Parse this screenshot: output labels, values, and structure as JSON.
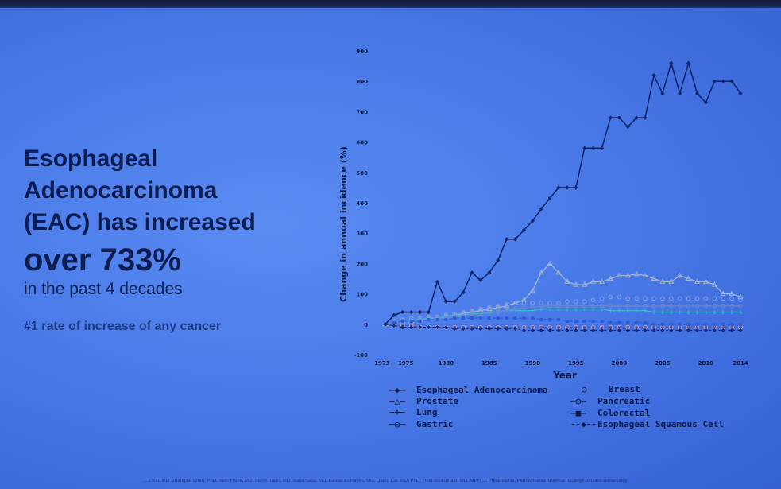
{
  "slide": {
    "headline": [
      "Esophageal",
      "Adenocarcinoma",
      "(EAC) has increased"
    ],
    "big_stat": "over 733%",
    "subtitle": "in the past 4 decades",
    "rank_note": "#1 rate of increase of any cancer",
    "footer": "... Zhou, MD; Zhangxia Chen, PhD; Seth Frenk, MD; Steve Kailin, MD; Nabil Saba, MD; Bassel El-Rayes, MD; Qiang Cai, MD, PhD; Field Willingham, MD, MPH; ... Philadelphia, Pennsylvania American College of Gastroenterology"
  },
  "colors": {
    "eac": "#13256a",
    "prostate": "#a8b8d0",
    "lung": "#3fb8d8",
    "gastric": "#6a5a9a",
    "breast": "#8da0d8",
    "pancreatic": "#6a88d0",
    "colorectal": "#2a5ad8",
    "escc": "#1a2a78",
    "axis_text": "#0e1a48"
  },
  "chart_data": {
    "type": "line",
    "title": "",
    "xlabel": "Year",
    "ylabel": "Change in annual incidence (%)",
    "ylim": [
      -100,
      900
    ],
    "yticks": [
      -100,
      0,
      100,
      200,
      300,
      400,
      500,
      600,
      700,
      800,
      900
    ],
    "ytick_labels": [
      "-100",
      "0",
      "100",
      "200",
      "300",
      "400",
      "500",
      "600",
      "700",
      "800",
      "900"
    ],
    "xlim": [
      1973,
      2014
    ],
    "xtick_labels": [
      {
        "x": 1973,
        "label": "1973"
      },
      {
        "x": 1975,
        "label": "1975"
      },
      {
        "x": 1980,
        "label": "1980"
      },
      {
        "x": 1985,
        "label": "1985"
      },
      {
        "x": 1990,
        "label": "1990"
      },
      {
        "x": 1995,
        "label": "1995"
      },
      {
        "x": 2000,
        "label": "2000"
      },
      {
        "x": 2005,
        "label": "2005"
      },
      {
        "x": 2010,
        "label": "2010"
      },
      {
        "x": 2014,
        "label": "2014"
      }
    ],
    "x": [
      1973,
      1974,
      1975,
      1976,
      1977,
      1978,
      1979,
      1980,
      1981,
      1982,
      1983,
      1984,
      1985,
      1986,
      1987,
      1988,
      1989,
      1990,
      1991,
      1992,
      1993,
      1994,
      1995,
      1996,
      1997,
      1998,
      1999,
      2000,
      2001,
      2002,
      2003,
      2004,
      2005,
      2006,
      2007,
      2008,
      2009,
      2010,
      2011,
      2012,
      2013,
      2014
    ],
    "series": [
      {
        "name": "Esophageal Adenocarcinoma",
        "key": "eac",
        "marker": "diamond",
        "dash": "",
        "values": [
          0,
          30,
          40,
          40,
          40,
          40,
          140,
          75,
          75,
          105,
          170,
          145,
          170,
          210,
          280,
          280,
          310,
          340,
          380,
          415,
          450,
          450,
          450,
          580,
          580,
          580,
          680,
          680,
          650,
          680,
          680,
          820,
          760,
          860,
          760,
          860,
          760,
          730,
          800,
          800,
          800,
          760
        ]
      },
      {
        "name": "Prostate",
        "key": "prostate",
        "marker": "triangle",
        "dash": "",
        "values": [
          0,
          5,
          10,
          10,
          15,
          20,
          20,
          25,
          30,
          35,
          40,
          45,
          50,
          55,
          60,
          70,
          80,
          110,
          170,
          200,
          170,
          140,
          130,
          130,
          140,
          140,
          150,
          160,
          160,
          165,
          160,
          150,
          140,
          140,
          160,
          150,
          140,
          140,
          130,
          100,
          100,
          90
        ]
      },
      {
        "name": "Lung",
        "key": "lung",
        "marker": "plus",
        "dash": "",
        "values": [
          0,
          5,
          10,
          15,
          15,
          20,
          20,
          25,
          30,
          30,
          35,
          35,
          40,
          40,
          45,
          45,
          45,
          45,
          50,
          50,
          50,
          50,
          50,
          50,
          50,
          50,
          45,
          45,
          45,
          45,
          45,
          40,
          40,
          40,
          40,
          40,
          40,
          40,
          40,
          40,
          40,
          40
        ]
      },
      {
        "name": "Gastric",
        "key": "gastric",
        "marker": "circle",
        "dash": "",
        "values": [
          0,
          -5,
          -5,
          -5,
          -10,
          -10,
          -10,
          -10,
          -10,
          -10,
          -10,
          -10,
          -10,
          -10,
          -10,
          -10,
          -10,
          -10,
          -10,
          -10,
          -10,
          -10,
          -10,
          -10,
          -10,
          -10,
          -10,
          -10,
          -10,
          -10,
          -10,
          -10,
          -10,
          -10,
          -10,
          -10,
          -10,
          -10,
          -10,
          -10,
          -10,
          -10
        ]
      },
      {
        "name": "Breast",
        "key": "breast",
        "marker": "ring",
        "dash": "none",
        "values": [
          0,
          10,
          15,
          20,
          20,
          25,
          25,
          30,
          35,
          40,
          45,
          50,
          55,
          60,
          65,
          70,
          70,
          70,
          70,
          70,
          70,
          75,
          75,
          75,
          80,
          85,
          90,
          90,
          85,
          85,
          85,
          85,
          85,
          85,
          85,
          85,
          85,
          85,
          85,
          85,
          85,
          80
        ]
      },
      {
        "name": "Pancreatic",
        "key": "pancreatic",
        "marker": "ring",
        "dash": "",
        "values": [
          0,
          5,
          10,
          10,
          15,
          15,
          20,
          20,
          25,
          25,
          30,
          30,
          35,
          40,
          45,
          50,
          55,
          55,
          60,
          60,
          60,
          60,
          60,
          60,
          60,
          60,
          60,
          60,
          60,
          60,
          60,
          60,
          60,
          60,
          60,
          60,
          60,
          60,
          60,
          60,
          60,
          60
        ]
      },
      {
        "name": "Colorectal",
        "key": "colorectal",
        "marker": "square",
        "dash": "5,3",
        "values": [
          0,
          5,
          10,
          10,
          10,
          15,
          15,
          15,
          20,
          20,
          20,
          20,
          20,
          20,
          20,
          20,
          20,
          20,
          15,
          15,
          15,
          10,
          10,
          10,
          10,
          10,
          5,
          5,
          5,
          5,
          5,
          0,
          0,
          0,
          0,
          0,
          0,
          0,
          0,
          0,
          0,
          0
        ]
      },
      {
        "name": "Esophageal Squamous Cell",
        "key": "escc",
        "marker": "diamond",
        "dash": "3,3",
        "values": [
          0,
          -5,
          -10,
          -10,
          -10,
          -10,
          -10,
          -10,
          -15,
          -15,
          -15,
          -15,
          -15,
          -15,
          -15,
          -15,
          -20,
          -20,
          -20,
          -20,
          -20,
          -20,
          -20,
          -20,
          -20,
          -20,
          -20,
          -20,
          -20,
          -20,
          -20,
          -20,
          -20,
          -20,
          -20,
          -20,
          -20,
          -20,
          -20,
          -20,
          -20,
          -20
        ]
      }
    ],
    "legend": [
      {
        "key": "eac",
        "label": "Esophageal Adenocarcinoma"
      },
      {
        "key": "prostate",
        "label": "Prostate"
      },
      {
        "key": "lung",
        "label": "Lung"
      },
      {
        "key": "gastric",
        "label": "Gastric"
      },
      {
        "key": "breast",
        "label": "Breast"
      },
      {
        "key": "pancreatic",
        "label": "Pancreatic"
      },
      {
        "key": "colorectal",
        "label": "Colorectal"
      },
      {
        "key": "escc",
        "label": "Esophageal Squamous Cell"
      }
    ],
    "legend_symbols": {
      "eac": "—◆—",
      "prostate": "—△—",
      "lung": "—+—",
      "gastric": "—◎—",
      "breast": "○",
      "pancreatic": "—○—",
      "colorectal": "–■–",
      "escc": "--◆--"
    },
    "legend_position": "bottom"
  }
}
